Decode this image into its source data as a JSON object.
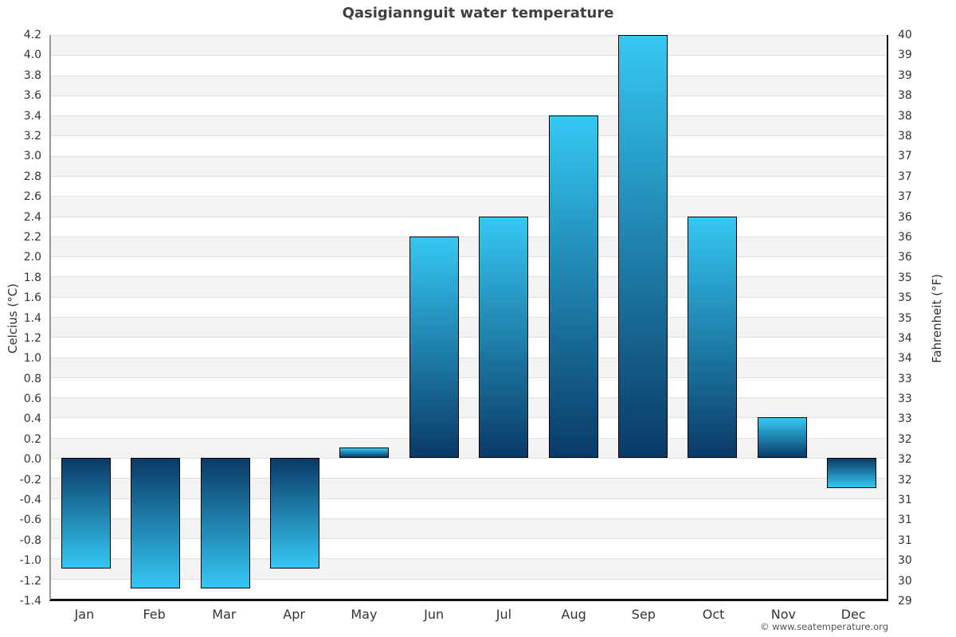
{
  "page": {
    "footer": "© www.seatemperature.org"
  },
  "chart_data": {
    "type": "bar",
    "title": "Qasigiannguit water temperature",
    "xlabel": "",
    "ylabel_left": "Celcius (°C)",
    "ylabel_right": "Fahrenheit (°F)",
    "categories": [
      "Jan",
      "Feb",
      "Mar",
      "Apr",
      "May",
      "Jun",
      "Jul",
      "Aug",
      "Sep",
      "Oct",
      "Nov",
      "Dec"
    ],
    "values": [
      -1.1,
      -1.3,
      -1.3,
      -1.1,
      0.1,
      2.2,
      2.4,
      3.4,
      4.2,
      2.4,
      0.4,
      -0.3
    ],
    "unit": "°C",
    "ylim": [
      -1.4,
      4.2
    ],
    "tick_step": 0.2,
    "left_ticks": [
      "4.2",
      "4.0",
      "3.8",
      "3.6",
      "3.4",
      "3.2",
      "3.0",
      "2.8",
      "2.6",
      "2.4",
      "2.2",
      "2.0",
      "1.8",
      "1.6",
      "1.4",
      "1.2",
      "1.0",
      "0.8",
      "0.6",
      "0.4",
      "0.2",
      "0.0",
      "-0.2",
      "-0.4",
      "-0.6",
      "-0.8",
      "-1.0",
      "-1.2",
      "-1.4"
    ],
    "right_ticks": [
      "40",
      "39",
      "39",
      "38",
      "38",
      "38",
      "37",
      "37",
      "37",
      "36",
      "36",
      "36",
      "35",
      "35",
      "35",
      "34",
      "34",
      "33",
      "33",
      "33",
      "32",
      "32",
      "32",
      "31",
      "31",
      "31",
      "30",
      "30",
      "29"
    ],
    "grid": true,
    "legend": false,
    "colors": {
      "bar_light": "#35c8f3",
      "bar_dark": "#0a3a67",
      "bar_border": "#000000",
      "band_gray": "#f3f3f3",
      "grid": "#e0e0e0",
      "axis_left": "#999999",
      "axis_dark": "#111111",
      "text": "#333333",
      "title": "#404040",
      "footer": "#555555"
    }
  }
}
